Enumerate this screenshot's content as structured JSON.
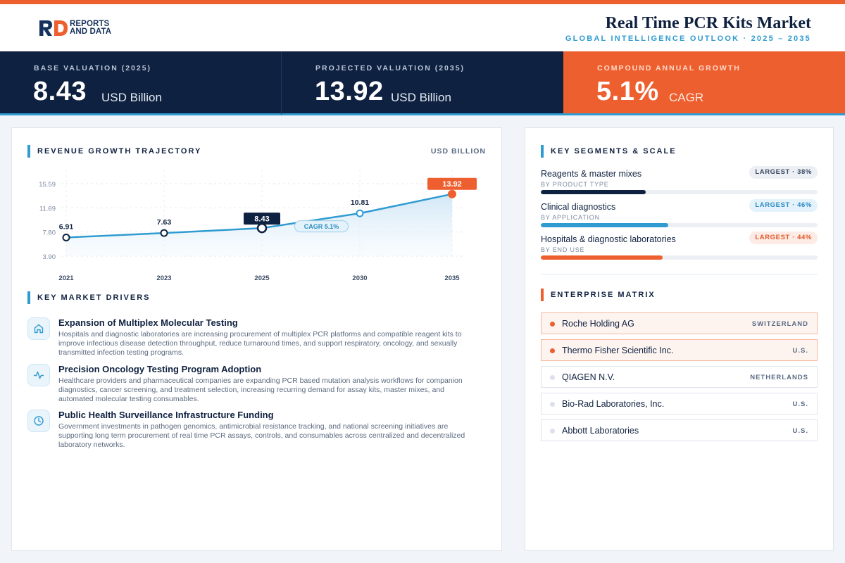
{
  "header": {
    "logo_line1": "REPORTS",
    "logo_line2": "AND DATA",
    "title": "Real Time PCR Kits Market",
    "subtitle": "GLOBAL INTELLIGENCE OUTLOOK  ·  2025 – 2035"
  },
  "kpis": [
    {
      "label": "BASE VALUATION (2025)",
      "value": "8.43",
      "unit": "USD Billion"
    },
    {
      "label": "PROJECTED VALUATION (2035)",
      "value": "13.92",
      "unit": "USD Billion"
    },
    {
      "label": "COMPOUND ANNUAL GROWTH",
      "value": "5.1%",
      "unit": "CAGR"
    }
  ],
  "revenue": {
    "title": "REVENUE GROWTH TRAJECTORY",
    "unit": "USD BILLION"
  },
  "chart_data": {
    "type": "area",
    "title": "REVENUE GROWTH TRAJECTORY",
    "ylabel": "USD BILLION",
    "x": [
      "2021",
      "2023",
      "2025",
      "2030",
      "2035"
    ],
    "values": [
      6.91,
      7.63,
      8.43,
      10.81,
      13.92
    ],
    "value_labels": [
      "6.91",
      "7.63",
      "8.43",
      "10.81",
      "13.92"
    ],
    "y_ticks": [
      "15.59",
      "11.69",
      "7.80",
      "3.90"
    ],
    "y_tick_values": [
      15.59,
      11.69,
      7.8,
      3.9
    ],
    "ylim": [
      3.9,
      15.59
    ],
    "highlight_base_index": 2,
    "highlight_end_index": 4,
    "annotation": "CAGR 5.1%",
    "grid": true,
    "colors": {
      "line": "#2f9bd1",
      "fill_top": "#cfe6f6",
      "navy": "#0f2140",
      "accent": "#ee5f2f"
    }
  },
  "drivers": {
    "title": "KEY MARKET DRIVERS",
    "items": [
      {
        "icon": "home-icon",
        "title": "Expansion of Multiplex Molecular Testing",
        "desc": "Hospitals and diagnostic laboratories are increasing procurement of multiplex PCR platforms and compatible reagent kits to improve infectious disease detection throughput, reduce turnaround times, and support respiratory, oncology, and sexually transmitted infection testing programs."
      },
      {
        "icon": "activity-icon",
        "title": "Precision Oncology Testing Program Adoption",
        "desc": "Healthcare providers and pharmaceutical companies are expanding PCR based mutation analysis workflows for companion diagnostics, cancer screening, and treatment selection, increasing recurring demand for assay kits, master mixes, and automated molecular testing consumables."
      },
      {
        "icon": "clock-icon",
        "title": "Public Health Surveillance Infrastructure Funding",
        "desc": "Government investments in pathogen genomics, antimicrobial resistance tracking, and national screening initiatives are supporting long term procurement of real time PCR assays, controls, and consumables across centralized and decentralized laboratory networks."
      }
    ]
  },
  "segments": {
    "title": "KEY SEGMENTS & SCALE",
    "items": [
      {
        "name": "Reagents & master mixes",
        "sub": "BY PRODUCT TYPE",
        "badge": "LARGEST · 38%",
        "share": 0.38,
        "color": "#0f2140",
        "badge_bg": "#eceff4",
        "badge_fg": "#3a4a63"
      },
      {
        "name": "Clinical diagnostics",
        "sub": "BY APPLICATION",
        "badge": "LARGEST · 46%",
        "share": 0.46,
        "color": "#2f9bd1",
        "badge_bg": "#e3f2fb",
        "badge_fg": "#2f8cc0"
      },
      {
        "name": "Hospitals & diagnostic laboratories",
        "sub": "BY END USE",
        "badge": "LARGEST · 44%",
        "share": 0.44,
        "color": "#ee5f2f",
        "badge_bg": "#fdece5",
        "badge_fg": "#e0582b"
      }
    ]
  },
  "enterprise": {
    "title": "ENTERPRISE MATRIX",
    "items": [
      {
        "name": "Roche Holding AG",
        "country": "SWITZERLAND",
        "highlight": true
      },
      {
        "name": "Thermo Fisher Scientific Inc.",
        "country": "U.S.",
        "highlight": true
      },
      {
        "name": "QIAGEN N.V.",
        "country": "NETHERLANDS",
        "highlight": false
      },
      {
        "name": "Bio-Rad Laboratories, Inc.",
        "country": "U.S.",
        "highlight": false
      },
      {
        "name": "Abbott Laboratories",
        "country": "U.S.",
        "highlight": false
      }
    ]
  }
}
